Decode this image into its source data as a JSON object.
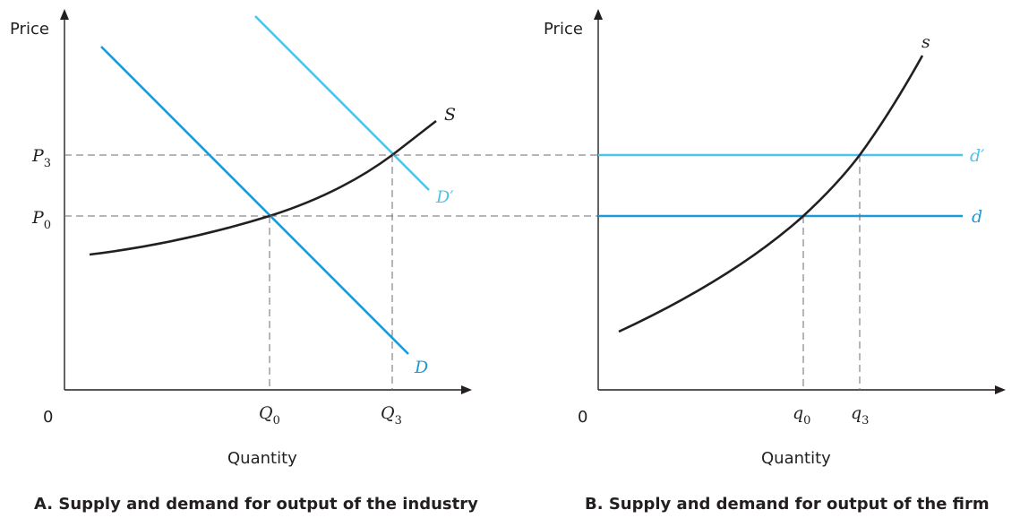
{
  "panelA": {
    "caption": "A. Supply and demand for output of the industry",
    "y_axis_label": "Price",
    "x_axis_label": "Quantity",
    "origin_label": "0",
    "p3_label": "P",
    "p3_sub": "3",
    "p0_label": "P",
    "p0_sub": "0",
    "q0_label": "Q",
    "q0_sub": "0",
    "q3_label": "Q",
    "q3_sub": "3",
    "supply_label": "S",
    "demand_label": "D",
    "demand_shifted_label": "D′"
  },
  "panelB": {
    "caption": "B. Supply and demand for output of the firm",
    "y_axis_label": "Price",
    "x_axis_label": "Quantity",
    "origin_label": "0",
    "q0_label": "q",
    "q0_sub": "0",
    "q3_label": "q",
    "q3_sub": "3",
    "supply_label": "s",
    "demand_label": "d",
    "demand_shifted_label": "d′"
  },
  "colors": {
    "demand": "#1c9ad6",
    "demand_shifted": "#4fc3ea",
    "supply": "#231f20"
  }
}
